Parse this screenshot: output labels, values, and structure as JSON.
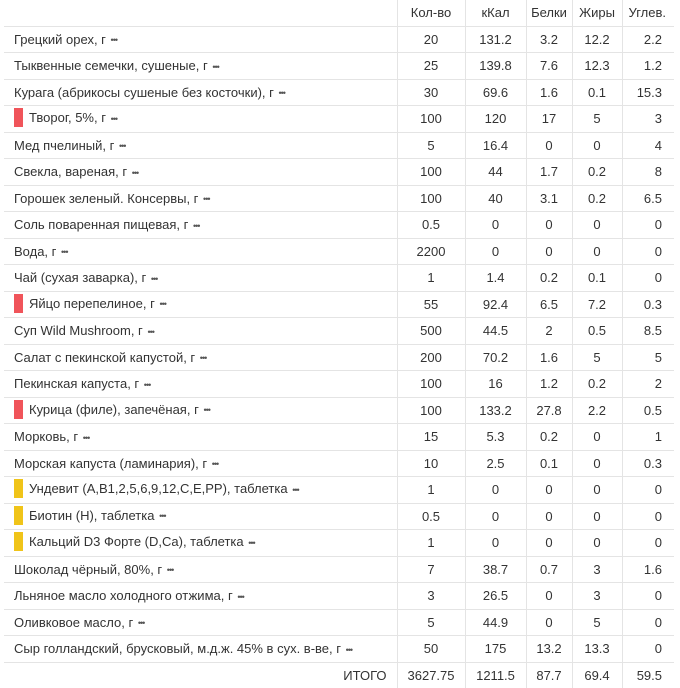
{
  "colors": {
    "protein_marker": "#f0545a",
    "vitamin_marker": "#f0c419"
  },
  "header": {
    "qty": "Кол-во",
    "kcal": "кКал",
    "protein": "Белки",
    "fat": "Жиры",
    "carbs": "Углев."
  },
  "more_icon": "•••",
  "rows": [
    {
      "name": "Грецкий орех, г",
      "marker": "",
      "qty": "20",
      "kcal": "131.2",
      "protein": "3.2",
      "fat": "12.2",
      "carbs": "2.2"
    },
    {
      "name": "Тыквенные семечки, сушеные, г",
      "marker": "",
      "qty": "25",
      "kcal": "139.8",
      "protein": "7.6",
      "fat": "12.3",
      "carbs": "1.2"
    },
    {
      "name": "Курага (абрикосы сушеные без косточки), г",
      "marker": "",
      "qty": "30",
      "kcal": "69.6",
      "protein": "1.6",
      "fat": "0.1",
      "carbs": "15.3"
    },
    {
      "name": "Творог, 5%, г",
      "marker": "red",
      "qty": "100",
      "kcal": "120",
      "protein": "17",
      "fat": "5",
      "carbs": "3"
    },
    {
      "name": "Мед пчелиный, г",
      "marker": "",
      "qty": "5",
      "kcal": "16.4",
      "protein": "0",
      "fat": "0",
      "carbs": "4"
    },
    {
      "name": "Свекла, вареная, г",
      "marker": "",
      "qty": "100",
      "kcal": "44",
      "protein": "1.7",
      "fat": "0.2",
      "carbs": "8"
    },
    {
      "name": "Горошек зеленый. Консервы, г",
      "marker": "",
      "qty": "100",
      "kcal": "40",
      "protein": "3.1",
      "fat": "0.2",
      "carbs": "6.5"
    },
    {
      "name": "Соль поваренная пищевая, г",
      "marker": "",
      "qty": "0.5",
      "kcal": "0",
      "protein": "0",
      "fat": "0",
      "carbs": "0"
    },
    {
      "name": "Вода, г",
      "marker": "",
      "qty": "2200",
      "kcal": "0",
      "protein": "0",
      "fat": "0",
      "carbs": "0"
    },
    {
      "name": "Чай (сухая заварка), г",
      "marker": "",
      "qty": "1",
      "kcal": "1.4",
      "protein": "0.2",
      "fat": "0.1",
      "carbs": "0"
    },
    {
      "name": "Яйцо перепелиное, г",
      "marker": "red",
      "qty": "55",
      "kcal": "92.4",
      "protein": "6.5",
      "fat": "7.2",
      "carbs": "0.3"
    },
    {
      "name": "Суп Wild Mushroom, г",
      "marker": "",
      "qty": "500",
      "kcal": "44.5",
      "protein": "2",
      "fat": "0.5",
      "carbs": "8.5"
    },
    {
      "name": "Салат с пекинской капустой, г",
      "marker": "",
      "qty": "200",
      "kcal": "70.2",
      "protein": "1.6",
      "fat": "5",
      "carbs": "5"
    },
    {
      "name": "Пекинская капуста, г",
      "marker": "",
      "qty": "100",
      "kcal": "16",
      "protein": "1.2",
      "fat": "0.2",
      "carbs": "2"
    },
    {
      "name": "Курица (филе), запечёная, г",
      "marker": "red",
      "qty": "100",
      "kcal": "133.2",
      "protein": "27.8",
      "fat": "2.2",
      "carbs": "0.5"
    },
    {
      "name": "Морковь, г",
      "marker": "",
      "qty": "15",
      "kcal": "5.3",
      "protein": "0.2",
      "fat": "0",
      "carbs": "1"
    },
    {
      "name": "Морская капуста (ламинария), г",
      "marker": "",
      "qty": "10",
      "kcal": "2.5",
      "protein": "0.1",
      "fat": "0",
      "carbs": "0.3"
    },
    {
      "name": "Ундевит (A,B1,2,5,6,9,12,C,E,PP), таблетка",
      "marker": "yellow",
      "qty": "1",
      "kcal": "0",
      "protein": "0",
      "fat": "0",
      "carbs": "0"
    },
    {
      "name": "Биотин (H), таблетка",
      "marker": "yellow",
      "qty": "0.5",
      "kcal": "0",
      "protein": "0",
      "fat": "0",
      "carbs": "0"
    },
    {
      "name": "Кальций D3 Форте (D,Ca), таблетка",
      "marker": "yellow",
      "qty": "1",
      "kcal": "0",
      "protein": "0",
      "fat": "0",
      "carbs": "0"
    },
    {
      "name": "Шоколад чёрный, 80%, г",
      "marker": "",
      "qty": "7",
      "kcal": "38.7",
      "protein": "0.7",
      "fat": "3",
      "carbs": "1.6"
    },
    {
      "name": "Льняное масло холодного отжима, г",
      "marker": "",
      "qty": "3",
      "kcal": "26.5",
      "protein": "0",
      "fat": "3",
      "carbs": "0"
    },
    {
      "name": "Оливковое масло, г",
      "marker": "",
      "qty": "5",
      "kcal": "44.9",
      "protein": "0",
      "fat": "5",
      "carbs": "0"
    },
    {
      "name": "Сыр голландский, брусковый, м.д.ж. 45% в сух. в-ве, г",
      "marker": "",
      "qty": "50",
      "kcal": "175",
      "protein": "13.2",
      "fat": "13.3",
      "carbs": "0"
    }
  ],
  "total": {
    "label": "ИТОГО",
    "qty": "3627.75",
    "kcal": "1211.5",
    "protein": "87.7",
    "fat": "69.4",
    "carbs": "59.5"
  }
}
